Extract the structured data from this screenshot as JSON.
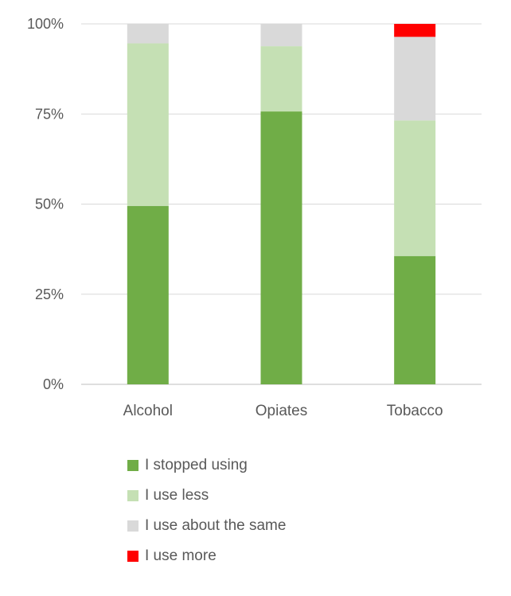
{
  "chart_data": {
    "type": "bar",
    "stacked": true,
    "categories": [
      "Alcohol",
      "Opiates",
      "Tobacco"
    ],
    "series": [
      {
        "name": "I stopped using",
        "color": "#70ad47",
        "values": [
          49.5,
          75.7,
          35.6
        ]
      },
      {
        "name": "I use less",
        "color": "#c5e0b4",
        "values": [
          45.1,
          18.1,
          37.6
        ]
      },
      {
        "name": "I use about the same",
        "color": "#d9d9d9",
        "values": [
          5.4,
          6.2,
          23.2
        ]
      },
      {
        "name": "I use more",
        "color": "#ff0000",
        "values": [
          0,
          0,
          3.6
        ]
      }
    ],
    "yticks": [
      "0%",
      "25%",
      "50%",
      "75%",
      "100%"
    ],
    "ylim": [
      0,
      100
    ],
    "grid": true,
    "legend_position": "bottom"
  }
}
